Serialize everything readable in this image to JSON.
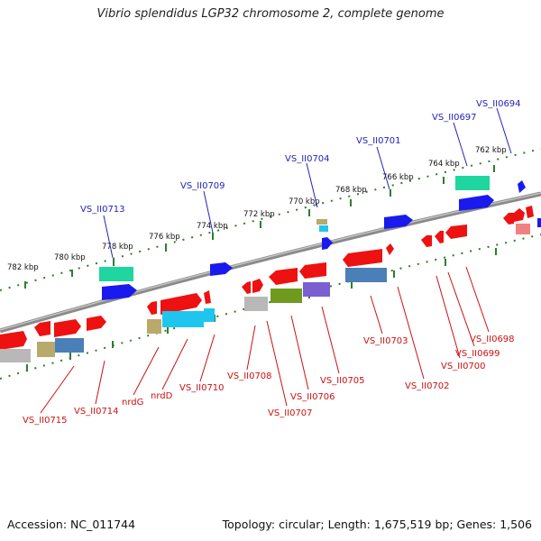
{
  "title": "Vibrio splendidus LGP32 chromosome 2, complete genome",
  "accession": "Accession: NC_011744",
  "topology": "Topology: circular; Length: 1,675,519 bp; Genes: 1,506",
  "colors": {
    "backbone": "#8a8a8a",
    "tick_green": "#2e7d2e",
    "top_label": "#2222bb",
    "bottom_label": "#cc1111",
    "gene_red": "#ee1111",
    "gene_blue": "#1a1aee",
    "gene_teal": "#1fd6a0",
    "gene_cyan": "#1ec6ef",
    "gene_olive": "#6e9a1e",
    "gene_gray": "#b8b8b8",
    "gene_steel": "#4a7fb8",
    "gene_purple": "#7a5fd0",
    "gene_khaki": "#b9a96a"
  },
  "kbp_labels": [
    "782 kbp",
    "780 kbp",
    "778 kbp",
    "776 kbp",
    "774 kbp",
    "772 kbp",
    "770 kbp",
    "768 kbp",
    "766 kbp",
    "764 kbp",
    "762 kbp"
  ],
  "top_labels": [
    "VS_II0713",
    "VS_II0709",
    "VS_II0704",
    "VS_II0701",
    "VS_II0697",
    "VS_II0694"
  ],
  "bottom_labels": [
    "VS_II0715",
    "VS_II0714",
    "nrdG",
    "nrdD",
    "VS_II0710",
    "VS_II0708",
    "VS_II0707",
    "VS_II0706",
    "VS_II0705",
    "VS_II0703",
    "VS_II0702",
    "VS_II0700",
    "VS_II0699",
    "VS_II0698"
  ]
}
